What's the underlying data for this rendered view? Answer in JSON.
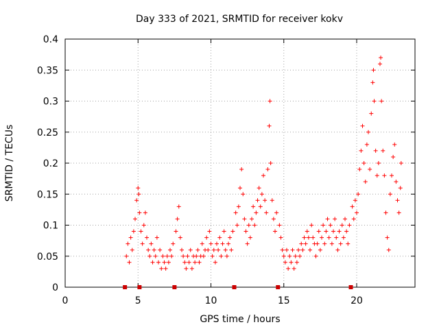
{
  "chart_data": {
    "type": "scatter",
    "title": "Day 333 of 2021, SRMTID for receiver kokv",
    "xlabel": "GPS time / hours",
    "ylabel": "SRMTID / TECUs",
    "xlim": [
      0,
      24
    ],
    "ylim": [
      0,
      0.4
    ],
    "xticks": [
      0,
      5,
      10,
      15,
      20
    ],
    "xtick_labels": [
      "0",
      "5",
      "10",
      "15",
      "20"
    ],
    "yticks": [
      0,
      0.05,
      0.1,
      0.15,
      0.2,
      0.25,
      0.3,
      0.35,
      0.4
    ],
    "ytick_labels": [
      "0",
      "0.05",
      "0.1",
      "0.15",
      "0.2",
      "0.25",
      "0.3",
      "0.35",
      "0.4"
    ],
    "grid": true,
    "legend": "none",
    "marker": "plus",
    "series_color": "#ff0000",
    "gap_marker_color": "#cc0000",
    "gap_markers_x": [
      4.1,
      5.1,
      7.5,
      11.6,
      14.6,
      19.6
    ],
    "series": [
      {
        "name": "SRMTID",
        "points": [
          [
            4.2,
            0.05
          ],
          [
            4.3,
            0.07
          ],
          [
            4.4,
            0.04
          ],
          [
            4.5,
            0.08
          ],
          [
            4.6,
            0.06
          ],
          [
            4.7,
            0.09
          ],
          [
            4.8,
            0.11
          ],
          [
            4.9,
            0.14
          ],
          [
            5.0,
            0.16
          ],
          [
            5.05,
            0.15
          ],
          [
            5.1,
            0.12
          ],
          [
            5.2,
            0.09
          ],
          [
            5.3,
            0.07
          ],
          [
            5.4,
            0.1
          ],
          [
            5.5,
            0.12
          ],
          [
            5.6,
            0.08
          ],
          [
            5.7,
            0.06
          ],
          [
            5.8,
            0.05
          ],
          [
            5.9,
            0.07
          ],
          [
            6.0,
            0.04
          ],
          [
            6.1,
            0.06
          ],
          [
            6.2,
            0.05
          ],
          [
            6.3,
            0.08
          ],
          [
            6.4,
            0.04
          ],
          [
            6.5,
            0.06
          ],
          [
            6.6,
            0.03
          ],
          [
            6.7,
            0.05
          ],
          [
            6.8,
            0.04
          ],
          [
            6.9,
            0.03
          ],
          [
            7.0,
            0.05
          ],
          [
            7.1,
            0.04
          ],
          [
            7.2,
            0.06
          ],
          [
            7.3,
            0.05
          ],
          [
            7.4,
            0.07
          ],
          [
            7.6,
            0.09
          ],
          [
            7.7,
            0.11
          ],
          [
            7.8,
            0.13
          ],
          [
            7.9,
            0.08
          ],
          [
            8.0,
            0.06
          ],
          [
            8.1,
            0.05
          ],
          [
            8.2,
            0.04
          ],
          [
            8.3,
            0.03
          ],
          [
            8.4,
            0.05
          ],
          [
            8.5,
            0.04
          ],
          [
            8.6,
            0.06
          ],
          [
            8.7,
            0.03
          ],
          [
            8.8,
            0.05
          ],
          [
            8.9,
            0.04
          ],
          [
            9.0,
            0.05
          ],
          [
            9.1,
            0.06
          ],
          [
            9.2,
            0.04
          ],
          [
            9.3,
            0.05
          ],
          [
            9.4,
            0.07
          ],
          [
            9.5,
            0.05
          ],
          [
            9.6,
            0.06
          ],
          [
            9.7,
            0.08
          ],
          [
            9.8,
            0.06
          ],
          [
            9.9,
            0.09
          ],
          [
            10.0,
            0.07
          ],
          [
            10.1,
            0.05
          ],
          [
            10.2,
            0.06
          ],
          [
            10.3,
            0.04
          ],
          [
            10.4,
            0.07
          ],
          [
            10.5,
            0.06
          ],
          [
            10.6,
            0.08
          ],
          [
            10.7,
            0.05
          ],
          [
            10.8,
            0.07
          ],
          [
            10.9,
            0.09
          ],
          [
            11.0,
            0.06
          ],
          [
            11.1,
            0.05
          ],
          [
            11.2,
            0.07
          ],
          [
            11.3,
            0.08
          ],
          [
            11.4,
            0.06
          ],
          [
            11.5,
            0.09
          ],
          [
            11.7,
            0.12
          ],
          [
            11.8,
            0.1
          ],
          [
            11.9,
            0.13
          ],
          [
            12.0,
            0.16
          ],
          [
            12.1,
            0.19
          ],
          [
            12.2,
            0.15
          ],
          [
            12.3,
            0.11
          ],
          [
            12.4,
            0.09
          ],
          [
            12.5,
            0.07
          ],
          [
            12.6,
            0.1
          ],
          [
            12.7,
            0.08
          ],
          [
            12.8,
            0.11
          ],
          [
            12.9,
            0.13
          ],
          [
            13.0,
            0.1
          ],
          [
            13.1,
            0.12
          ],
          [
            13.2,
            0.14
          ],
          [
            13.3,
            0.16
          ],
          [
            13.4,
            0.13
          ],
          [
            13.5,
            0.15
          ],
          [
            13.6,
            0.18
          ],
          [
            13.7,
            0.14
          ],
          [
            13.8,
            0.12
          ],
          [
            13.9,
            0.19
          ],
          [
            14.0,
            0.26
          ],
          [
            14.05,
            0.3
          ],
          [
            14.1,
            0.2
          ],
          [
            14.2,
            0.14
          ],
          [
            14.3,
            0.11
          ],
          [
            14.4,
            0.09
          ],
          [
            14.5,
            0.12
          ],
          [
            14.7,
            0.1
          ],
          [
            14.8,
            0.08
          ],
          [
            14.9,
            0.06
          ],
          [
            15.0,
            0.05
          ],
          [
            15.1,
            0.04
          ],
          [
            15.2,
            0.06
          ],
          [
            15.3,
            0.03
          ],
          [
            15.4,
            0.05
          ],
          [
            15.5,
            0.04
          ],
          [
            15.6,
            0.06
          ],
          [
            15.7,
            0.03
          ],
          [
            15.8,
            0.05
          ],
          [
            15.9,
            0.04
          ],
          [
            16.0,
            0.06
          ],
          [
            16.1,
            0.05
          ],
          [
            16.2,
            0.07
          ],
          [
            16.3,
            0.06
          ],
          [
            16.4,
            0.08
          ],
          [
            16.5,
            0.07
          ],
          [
            16.6,
            0.09
          ],
          [
            16.7,
            0.08
          ],
          [
            16.8,
            0.06
          ],
          [
            16.9,
            0.1
          ],
          [
            17.0,
            0.08
          ],
          [
            17.1,
            0.07
          ],
          [
            17.2,
            0.05
          ],
          [
            17.3,
            0.07
          ],
          [
            17.4,
            0.09
          ],
          [
            17.5,
            0.06
          ],
          [
            17.6,
            0.08
          ],
          [
            17.7,
            0.1
          ],
          [
            17.8,
            0.07
          ],
          [
            17.9,
            0.09
          ],
          [
            18.0,
            0.11
          ],
          [
            18.1,
            0.08
          ],
          [
            18.2,
            0.1
          ],
          [
            18.3,
            0.07
          ],
          [
            18.4,
            0.09
          ],
          [
            18.5,
            0.11
          ],
          [
            18.6,
            0.08
          ],
          [
            18.7,
            0.06
          ],
          [
            18.8,
            0.09
          ],
          [
            18.9,
            0.07
          ],
          [
            19.0,
            0.1
          ],
          [
            19.1,
            0.08
          ],
          [
            19.2,
            0.11
          ],
          [
            19.3,
            0.09
          ],
          [
            19.4,
            0.07
          ],
          [
            19.5,
            0.1
          ],
          [
            19.7,
            0.13
          ],
          [
            19.8,
            0.11
          ],
          [
            19.9,
            0.14
          ],
          [
            20.0,
            0.12
          ],
          [
            20.1,
            0.15
          ],
          [
            20.2,
            0.19
          ],
          [
            20.3,
            0.22
          ],
          [
            20.4,
            0.26
          ],
          [
            20.5,
            0.2
          ],
          [
            20.6,
            0.17
          ],
          [
            20.7,
            0.23
          ],
          [
            20.8,
            0.25
          ],
          [
            20.9,
            0.19
          ],
          [
            21.0,
            0.28
          ],
          [
            21.1,
            0.33
          ],
          [
            21.15,
            0.35
          ],
          [
            21.2,
            0.3
          ],
          [
            21.3,
            0.22
          ],
          [
            21.4,
            0.18
          ],
          [
            21.5,
            0.2
          ],
          [
            21.6,
            0.36
          ],
          [
            21.65,
            0.37
          ],
          [
            21.7,
            0.3
          ],
          [
            21.8,
            0.22
          ],
          [
            21.9,
            0.18
          ],
          [
            22.0,
            0.12
          ],
          [
            22.1,
            0.08
          ],
          [
            22.2,
            0.06
          ],
          [
            22.3,
            0.15
          ],
          [
            22.4,
            0.18
          ],
          [
            22.5,
            0.21
          ],
          [
            22.6,
            0.23
          ],
          [
            22.7,
            0.17
          ],
          [
            22.8,
            0.14
          ],
          [
            22.9,
            0.12
          ],
          [
            23.0,
            0.16
          ],
          [
            23.05,
            0.2
          ]
        ]
      }
    ]
  }
}
